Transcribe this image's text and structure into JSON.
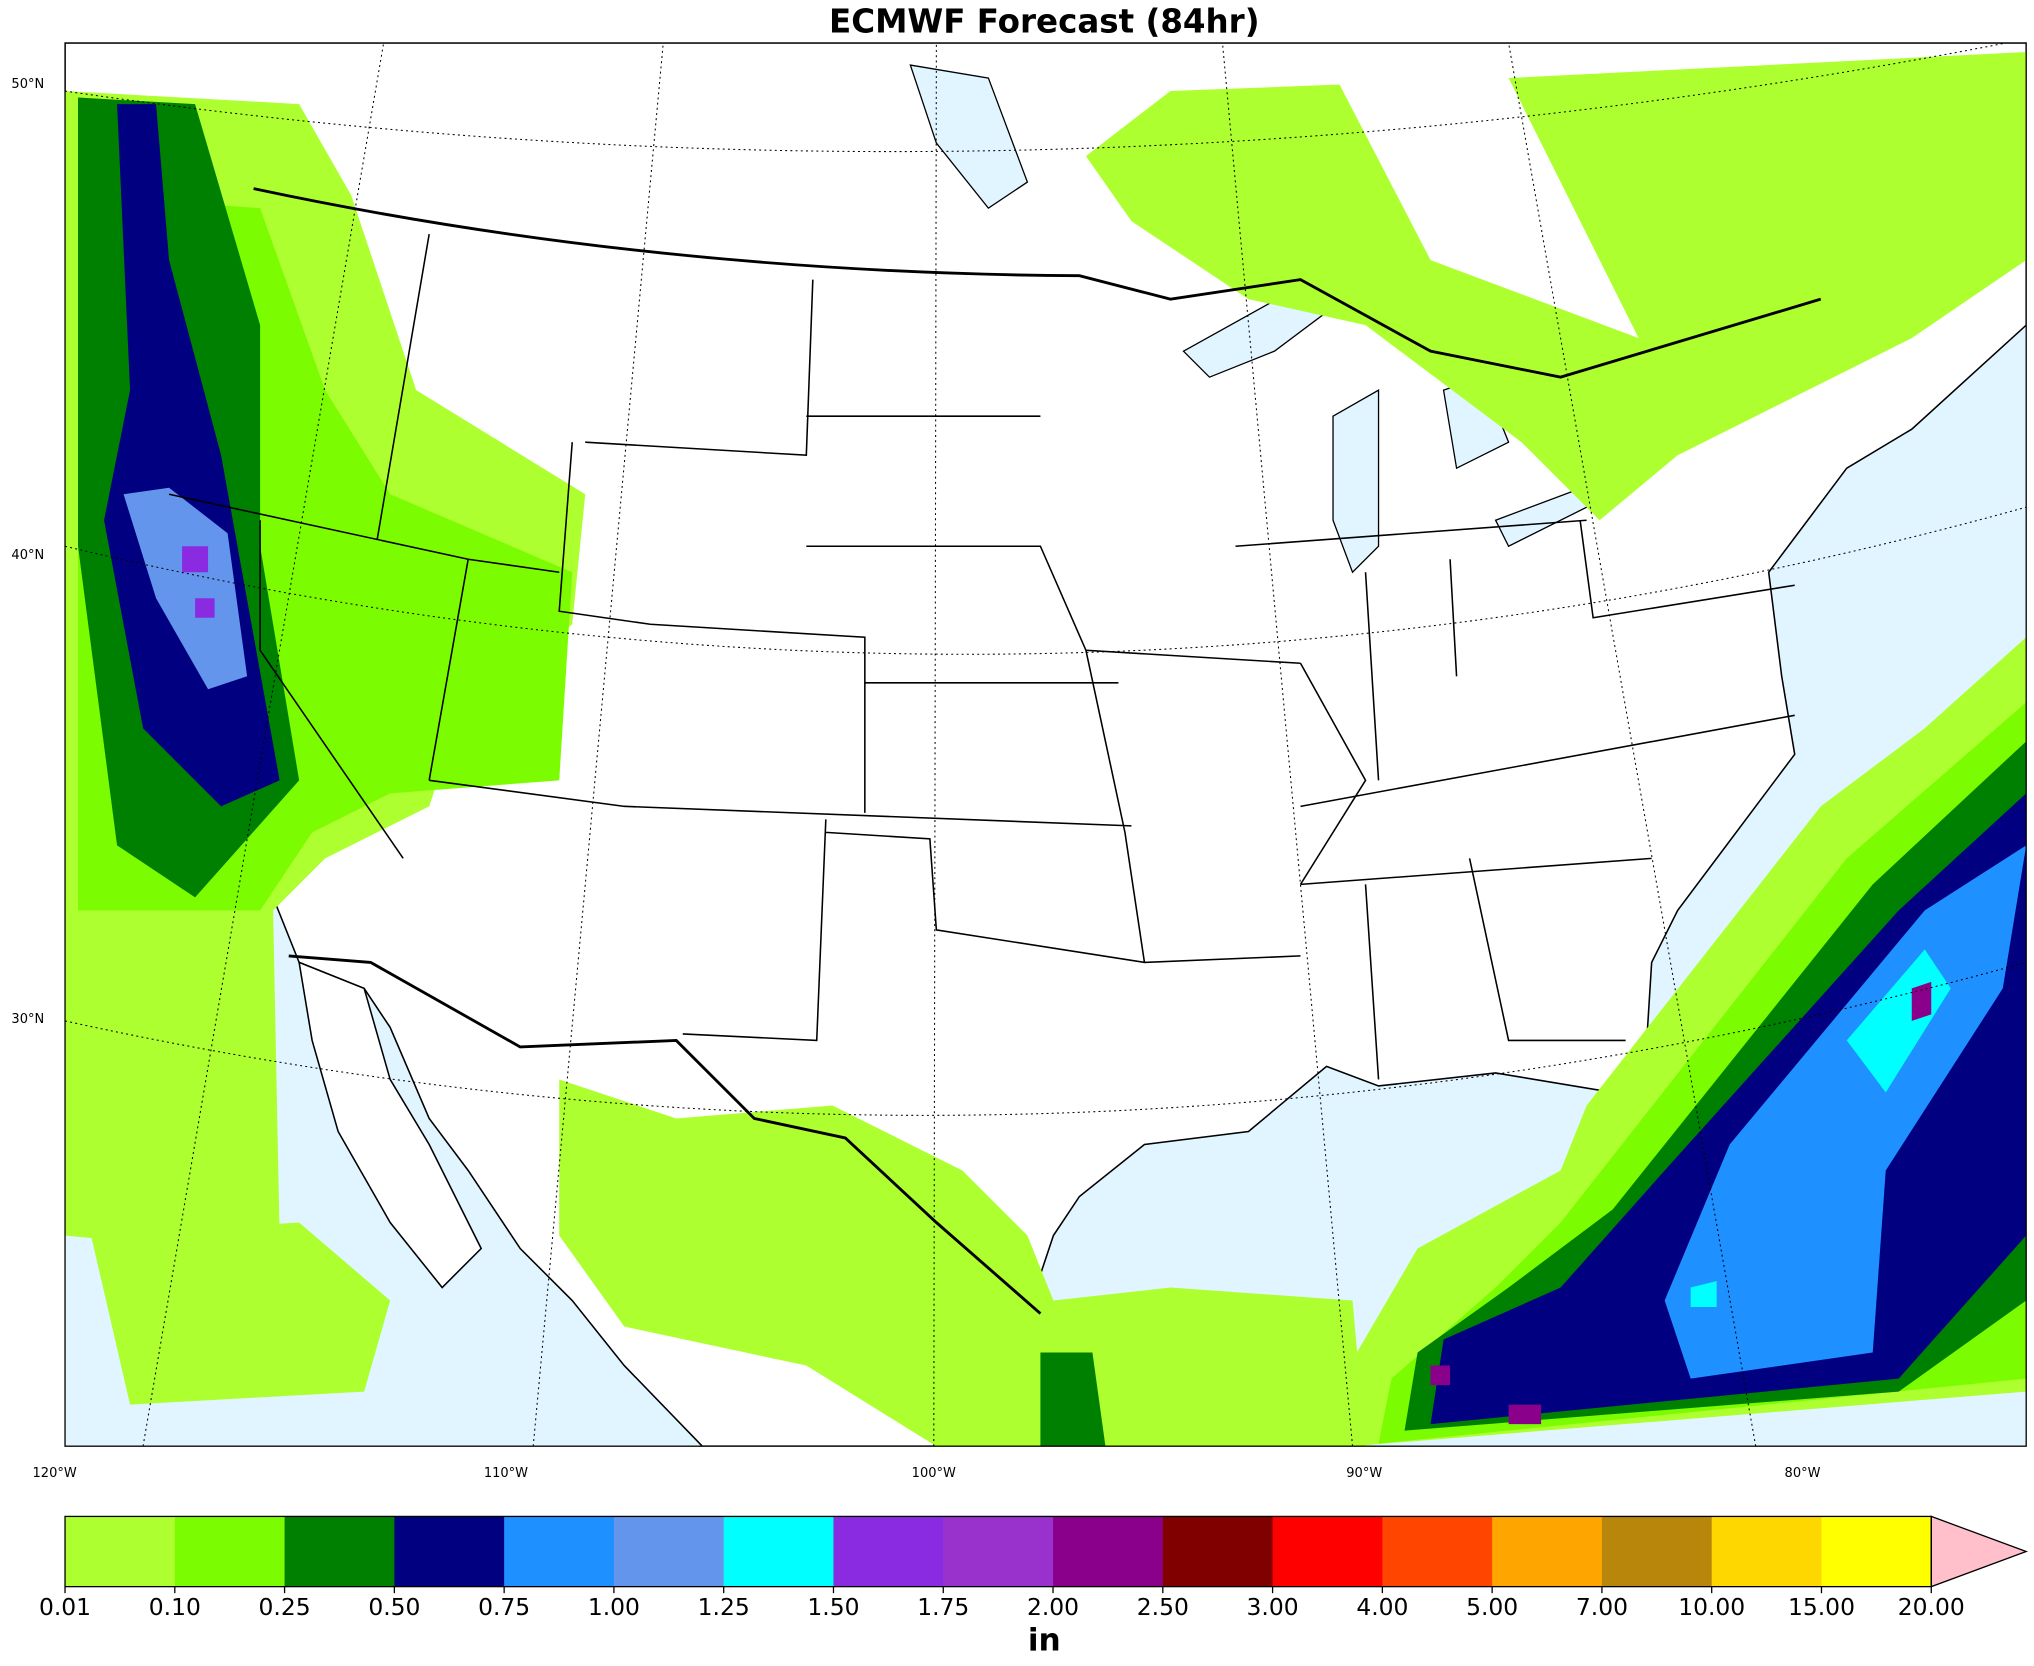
{
  "map": {
    "title": "ECMWF Forecast (84hr)",
    "lat_labels": [
      "50°N",
      "40°N",
      "30°N"
    ],
    "lon_labels": [
      "120°W",
      "110°W",
      "100°W",
      "90°W",
      "80°W"
    ],
    "colorbar": {
      "unit": "in",
      "levels": [
        0.01,
        {
          "value": 0.1,
          "label": "0.10"
        },
        0.25,
        {
          "value": 0.5,
          "label": "0.50"
        },
        0.75,
        {
          "value": 1,
          "label": "1.00"
        },
        1.25,
        {
          "value": 1.5,
          "label": "1.50"
        },
        1.75,
        {
          "value": 2,
          "label": "2.00"
        },
        {
          "value": 2.5,
          "label": "2.50"
        },
        {
          "value": 3,
          "label": "3.00"
        },
        {
          "value": 4,
          "label": "4.00"
        },
        {
          "value": 5,
          "label": "5.00"
        },
        {
          "value": 7,
          "label": "7.00"
        },
        {
          "value": 10,
          "label": "10.00"
        },
        {
          "value": 15,
          "label": "15.00"
        },
        {
          "value": 20,
          "label": "20.00"
        }
      ],
      "colors": [
        "#adff2f",
        "#7cfc00",
        "#008000",
        "#000080",
        "#1e90ff",
        "#6495ed",
        "#00ffff",
        "#8a2be2",
        "#9932cc",
        "#8b008b",
        "#800000",
        "#ff0000",
        "#ff4500",
        "#ffa500",
        "#b8860b",
        "#ffd700",
        "#ffff00"
      ],
      "extend_color": "#ffc0cb"
    }
  }
}
